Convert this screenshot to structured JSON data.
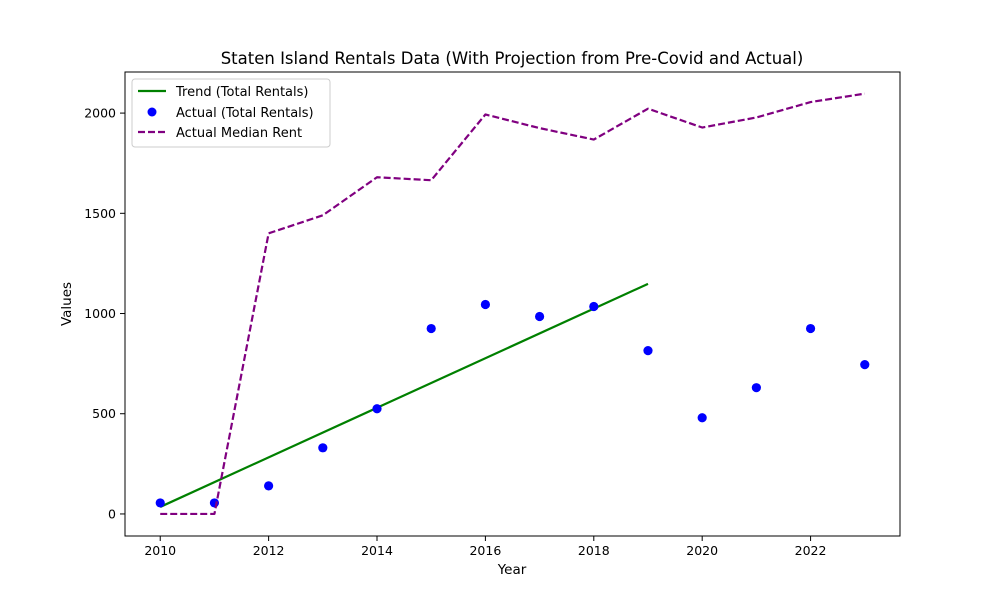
{
  "chart_data": {
    "type": "line",
    "title": "Staten Island Rentals Data (With Projection from Pre-Covid and Actual)",
    "xlabel": "Year",
    "ylabel": "Values",
    "xlim": [
      2009.35,
      2023.65
    ],
    "ylim": [
      -110,
      2205
    ],
    "x_ticks": [
      2010,
      2012,
      2014,
      2016,
      2018,
      2020,
      2022
    ],
    "y_ticks": [
      0,
      500,
      1000,
      1500,
      2000
    ],
    "grid": false,
    "legend_position": "top-left",
    "series": [
      {
        "name": "Trend (Total Rentals)",
        "kind": "line",
        "style": "solid",
        "color": "#008000",
        "x": [
          2010,
          2019
        ],
        "y": [
          35,
          1148
        ]
      },
      {
        "name": "Actual (Total Rentals)",
        "kind": "scatter",
        "color": "#0000ff",
        "x": [
          2010,
          2011,
          2012,
          2013,
          2014,
          2015,
          2016,
          2017,
          2018,
          2019,
          2020,
          2021,
          2022,
          2023
        ],
        "y": [
          55,
          55,
          140,
          330,
          525,
          925,
          1045,
          985,
          1035,
          815,
          480,
          630,
          925,
          745
        ]
      },
      {
        "name": "Actual Median Rent",
        "kind": "line",
        "style": "dashed",
        "color": "#800080",
        "x": [
          2010,
          2011,
          2012,
          2013,
          2014,
          2015,
          2016,
          2017,
          2018,
          2019,
          2020,
          2021,
          2022,
          2023
        ],
        "y": [
          0,
          0,
          1400,
          1490,
          1680,
          1665,
          1993,
          1925,
          1868,
          2022,
          1928,
          1978,
          2055,
          2097
        ]
      }
    ]
  }
}
